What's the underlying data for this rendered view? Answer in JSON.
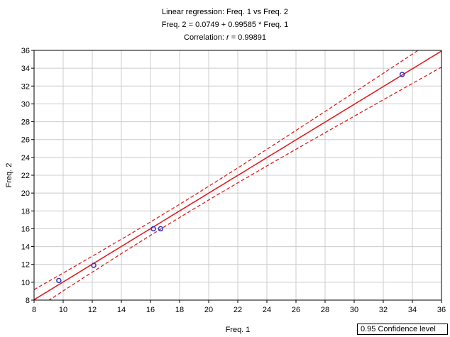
{
  "chart_data": {
    "type": "scatter",
    "title_lines": [
      "Linear regression: Freq. 1 vs Freq. 2",
      "Freq. 2 = 0.0749 + 0.99585 * Freq. 1",
      "Correlation: r = 0.99891"
    ],
    "xlabel": "Freq. 1",
    "ylabel": "Freq. 2",
    "xlim": [
      8,
      36
    ],
    "ylim": [
      8,
      36
    ],
    "xticks": [
      8,
      10,
      12,
      14,
      16,
      18,
      20,
      22,
      24,
      26,
      28,
      30,
      32,
      34,
      36
    ],
    "yticks": [
      8,
      10,
      12,
      14,
      16,
      18,
      20,
      22,
      24,
      26,
      28,
      30,
      32,
      34,
      36
    ],
    "grid": true,
    "points": [
      {
        "x": 9.7,
        "y": 10.2
      },
      {
        "x": 12.1,
        "y": 11.9
      },
      {
        "x": 16.2,
        "y": 16.0
      },
      {
        "x": 16.7,
        "y": 16.0
      },
      {
        "x": 33.3,
        "y": 33.3
      }
    ],
    "regression": {
      "intercept": 0.0749,
      "slope": 0.99585
    },
    "confidence_level": "0.95 Confidence level",
    "colors": {
      "points": "#3333cc",
      "regression": "#e02020",
      "grid": "#cccccc"
    }
  }
}
